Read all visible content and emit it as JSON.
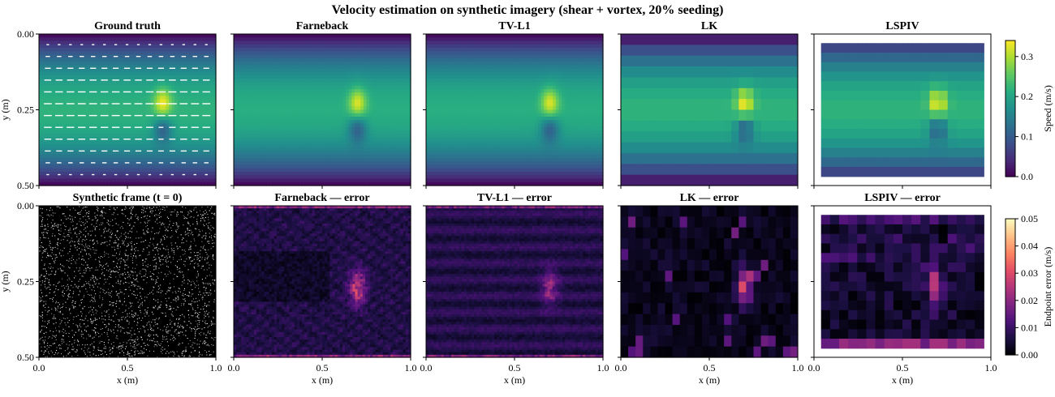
{
  "title": "Velocity estimation on synthetic imagery (shear + vortex, 20% seeding)",
  "colors": {
    "speed_colormap": "viridis",
    "error_colormap": "magma",
    "frame_background": "#000000",
    "arrow_color": "#ffffff"
  },
  "panels_top": [
    {
      "key": "gt",
      "title": "Ground truth"
    },
    {
      "key": "farneback",
      "title": "Farneback"
    },
    {
      "key": "tvl1",
      "title": "TV-L1"
    },
    {
      "key": "lk",
      "title": "LK"
    },
    {
      "key": "lspiv",
      "title": "LSPIV"
    }
  ],
  "panels_bottom": [
    {
      "key": "frame",
      "title": "Synthetic frame (t = 0)"
    },
    {
      "key": "farneback_err",
      "title": "Farneback — error"
    },
    {
      "key": "tvl1_err",
      "title": "TV-L1 — error"
    },
    {
      "key": "lk_err",
      "title": "LK — error"
    },
    {
      "key": "lspiv_err",
      "title": "LSPIV — error"
    }
  ],
  "axes": {
    "xlabel": "x (m)",
    "ylabel": "y (m)",
    "xticks": [
      "0.0",
      "0.5",
      "1.0"
    ],
    "yticks": [
      "0.00",
      "0.25",
      "0.50"
    ]
  },
  "colorbars": {
    "speed": {
      "label": "Speed (m/s)",
      "ticks": [
        "0.3",
        "0.2",
        "0.1",
        "0.0"
      ]
    },
    "error": {
      "label": "Endpoint error (m/s)",
      "ticks": [
        "0.05",
        "0.04",
        "0.03",
        "0.02",
        "0.01",
        "0.00"
      ]
    }
  },
  "chart_data": {
    "type": "heatmap",
    "title": "Velocity estimation on synthetic imagery (shear + vortex, 20% seeding)",
    "xlabel": "x (m)",
    "ylabel": "y (m)",
    "xlim": [
      0.0,
      1.0
    ],
    "ylim": [
      0.0,
      0.5
    ],
    "speed_colorbar": {
      "label": "Speed (m/s)",
      "range": [
        0.0,
        0.34
      ]
    },
    "error_colorbar": {
      "label": "Endpoint error (m/s)",
      "range": [
        0.0,
        0.05
      ]
    },
    "flow_field": {
      "description_visible": "horizontal shear flow with a vortex",
      "background_speed_max": 0.22,
      "vortex_center": [
        0.7,
        0.23
      ],
      "vortex_peak_speed": 0.34,
      "vortex_low_speed": 0.12
    },
    "lk_grid": [
      24,
      14
    ],
    "lspiv_grid": [
      18,
      14
    ],
    "lspiv_extent": {
      "x": [
        0.04,
        0.96
      ],
      "y": [
        0.03,
        0.47
      ]
    },
    "peak_errors": {
      "farneback": 0.03,
      "tvl1": 0.02,
      "lk": 0.03,
      "lspiv": 0.035
    }
  }
}
